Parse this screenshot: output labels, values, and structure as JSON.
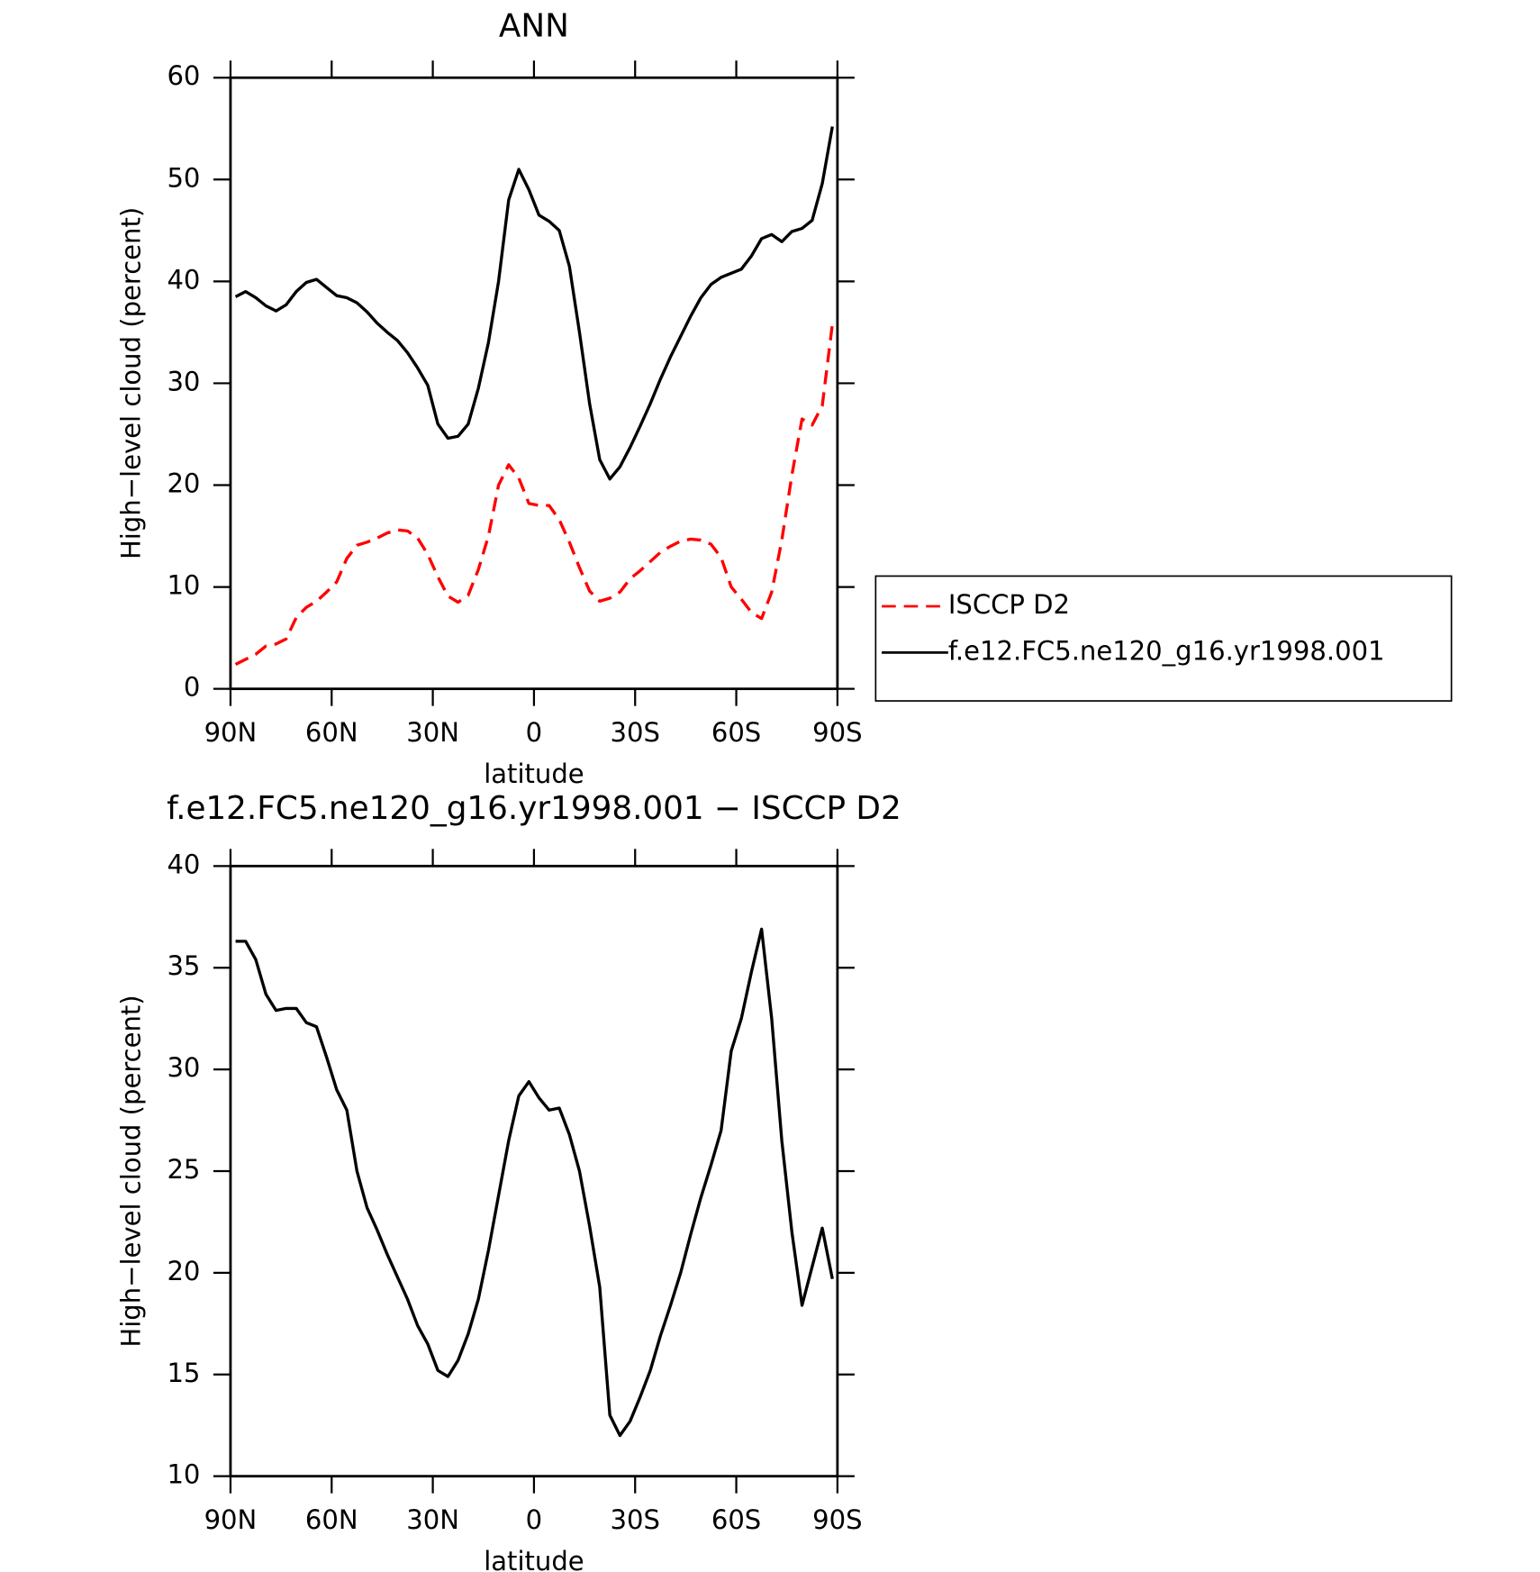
{
  "chart_data": [
    {
      "type": "line",
      "title": "ANN",
      "x_label": "latitude",
      "y_label": "High−level cloud (percent)",
      "xlim": [
        90,
        -90
      ],
      "xticks": [
        {
          "value": 90,
          "label": "90N"
        },
        {
          "value": 60,
          "label": "60N"
        },
        {
          "value": 30,
          "label": "30N"
        },
        0,
        {
          "value": -30,
          "label": "30S"
        },
        {
          "value": -60,
          "label": "60S"
        },
        {
          "value": -90,
          "label": "90S"
        }
      ],
      "ylim": [
        0,
        60
      ],
      "yticks": [
        0,
        10,
        20,
        30,
        40,
        50,
        60
      ],
      "legend": "right",
      "x": [
        88.5,
        85.5,
        82.5,
        79.5,
        76.5,
        73.5,
        70.5,
        67.5,
        64.5,
        61.5,
        58.5,
        55.5,
        52.5,
        49.5,
        46.5,
        43.5,
        40.5,
        37.5,
        34.5,
        31.5,
        28.5,
        25.5,
        22.5,
        19.5,
        16.5,
        13.5,
        10.5,
        7.5,
        4.5,
        1.5,
        -1.5,
        -4.5,
        -7.5,
        -10.5,
        -13.5,
        -16.5,
        -19.5,
        -22.5,
        -25.5,
        -28.5,
        -31.5,
        -34.5,
        -37.5,
        -40.5,
        -43.5,
        -46.5,
        -49.5,
        -52.5,
        -55.5,
        -58.5,
        -61.5,
        -64.5,
        -67.5,
        -70.5,
        -73.5,
        -76.5,
        -79.5,
        -82.5,
        -85.5,
        -88.5
      ],
      "series": [
        {
          "name": "ISCCP D2",
          "color": "#ff0000",
          "dash": true,
          "values": [
            2.4,
            2.9,
            3.4,
            4.2,
            4.4,
            4.9,
            7.0,
            8.0,
            8.6,
            9.5,
            10.5,
            12.8,
            14.1,
            14.4,
            14.8,
            15.3,
            15.6,
            15.5,
            14.8,
            13.2,
            11.0,
            9.1,
            8.5,
            9.2,
            11.7,
            15.0,
            20.0,
            22.0,
            20.7,
            18.2,
            18.0,
            18.0,
            16.6,
            14.4,
            11.9,
            9.6,
            8.6,
            8.9,
            9.5,
            10.8,
            11.6,
            12.5,
            13.4,
            14.0,
            14.5,
            14.7,
            14.6,
            14.2,
            12.9,
            10.0,
            8.8,
            7.5,
            6.9,
            9.5,
            14.6,
            21.0,
            26.5,
            25.9,
            27.8,
            35.8
          ]
        },
        {
          "name": "f.e12.FC5.ne120_g16.yr1998.001",
          "color": "#000000",
          "dash": false,
          "values": [
            38.5,
            39.0,
            38.4,
            37.6,
            37.1,
            37.7,
            39.0,
            39.9,
            40.2,
            39.4,
            38.6,
            38.4,
            37.9,
            37.0,
            35.9,
            35.0,
            34.2,
            33.0,
            31.5,
            29.8,
            26.0,
            24.6,
            24.8,
            26.0,
            29.5,
            34.0,
            40.0,
            48.0,
            51.0,
            49.0,
            46.5,
            45.9,
            45.0,
            41.5,
            35.0,
            28.0,
            22.5,
            20.6,
            21.8,
            23.7,
            25.8,
            28.0,
            30.4,
            32.6,
            34.6,
            36.6,
            38.4,
            39.7,
            40.4,
            40.8,
            41.2,
            42.5,
            44.2,
            44.6,
            43.9,
            44.9,
            45.2,
            46.0,
            49.6,
            55.2
          ]
        }
      ]
    },
    {
      "type": "line",
      "title": "f.e12.FC5.ne120_g16.yr1998.001 − ISCCP D2",
      "x_label": "latitude",
      "y_label": "High−level cloud (percent)",
      "xlim": [
        90,
        -90
      ],
      "xticks": [
        {
          "value": 90,
          "label": "90N"
        },
        {
          "value": 60,
          "label": "60N"
        },
        {
          "value": 30,
          "label": "30N"
        },
        0,
        {
          "value": -30,
          "label": "30S"
        },
        {
          "value": -60,
          "label": "60S"
        },
        {
          "value": -90,
          "label": "90S"
        }
      ],
      "ylim": [
        10,
        40
      ],
      "yticks": [
        10,
        15,
        20,
        25,
        30,
        35,
        40
      ],
      "x": [
        88.5,
        85.5,
        82.5,
        79.5,
        76.5,
        73.5,
        70.5,
        67.5,
        64.5,
        61.5,
        58.5,
        55.5,
        52.5,
        49.5,
        46.5,
        43.5,
        40.5,
        37.5,
        34.5,
        31.5,
        28.5,
        25.5,
        22.5,
        19.5,
        16.5,
        13.5,
        10.5,
        7.5,
        4.5,
        1.5,
        -1.5,
        -4.5,
        -7.5,
        -10.5,
        -13.5,
        -16.5,
        -19.5,
        -22.5,
        -25.5,
        -28.5,
        -31.5,
        -34.5,
        -37.5,
        -40.5,
        -43.5,
        -46.5,
        -49.5,
        -52.5,
        -55.5,
        -58.5,
        -61.5,
        -64.5,
        -67.5,
        -70.5,
        -73.5,
        -76.5,
        -79.5,
        -82.5,
        -85.5,
        -88.5
      ],
      "color": "#000000",
      "values": [
        36.3,
        36.3,
        35.4,
        33.7,
        32.9,
        33.0,
        33.0,
        32.3,
        32.1,
        30.6,
        29.0,
        28.0,
        25.0,
        23.2,
        22.1,
        20.9,
        19.8,
        18.7,
        17.4,
        16.5,
        15.2,
        14.9,
        15.7,
        17.0,
        18.7,
        21.1,
        23.8,
        26.5,
        28.7,
        29.4,
        28.6,
        28.0,
        28.1,
        26.8,
        25.0,
        22.3,
        19.3,
        13.0,
        12.0,
        12.7,
        13.9,
        15.2,
        16.9,
        18.4,
        20.0,
        21.9,
        23.7,
        25.3,
        27.0,
        30.9,
        32.5,
        34.8,
        36.9,
        32.5,
        26.5,
        22.0,
        18.4,
        20.3,
        22.2,
        19.7
      ]
    }
  ]
}
